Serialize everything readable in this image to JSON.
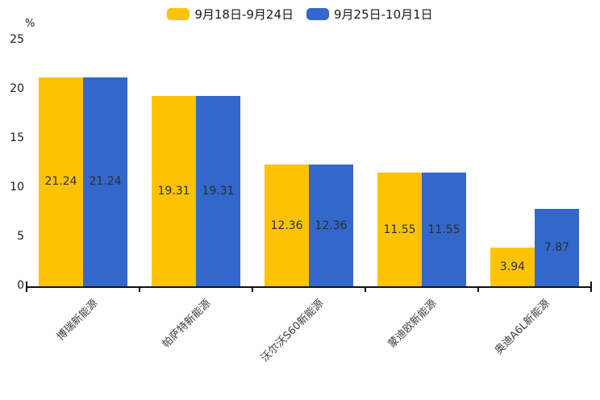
{
  "colors": {
    "series1": "#FDC303",
    "series2": "#3367CB",
    "axis": "#111111",
    "bar_label_text": "#2d2d2d",
    "background": "#ffffff"
  },
  "legend": {
    "items": [
      {
        "label": "9月18日-9月24日",
        "color": "#FDC303"
      },
      {
        "label": "9月25日-10月1日",
        "color": "#3367CB"
      }
    ]
  },
  "y_axis": {
    "unit": "%",
    "ticks": [
      0,
      5,
      10,
      15,
      20,
      25
    ]
  },
  "chart_data": {
    "type": "bar",
    "categories": [
      "博瑞新能源",
      "帕萨特新能源",
      "沃尔沃S60新能源",
      "蒙迪欧新能源",
      "奥迪A6L新能源"
    ],
    "series": [
      {
        "name": "9月18日-9月24日",
        "color": "#FDC303",
        "values": [
          21.24,
          19.31,
          12.36,
          11.55,
          3.94
        ],
        "labels": [
          "21.24",
          "19.31",
          "12.36",
          "11.55",
          "3.94"
        ]
      },
      {
        "name": "9月25日-10月1日",
        "color": "#3367CB",
        "values": [
          21.24,
          19.31,
          12.36,
          11.55,
          7.87
        ],
        "labels": [
          "21.24",
          "19.31",
          "12.36",
          "11.55",
          "7.87"
        ]
      }
    ],
    "title": "",
    "xlabel": "",
    "ylabel": "%",
    "ylim": [
      0,
      25
    ],
    "grid": false,
    "legend_position": "top",
    "bar_value_labels": "inside-center",
    "x_label_rotation_deg": 45
  }
}
